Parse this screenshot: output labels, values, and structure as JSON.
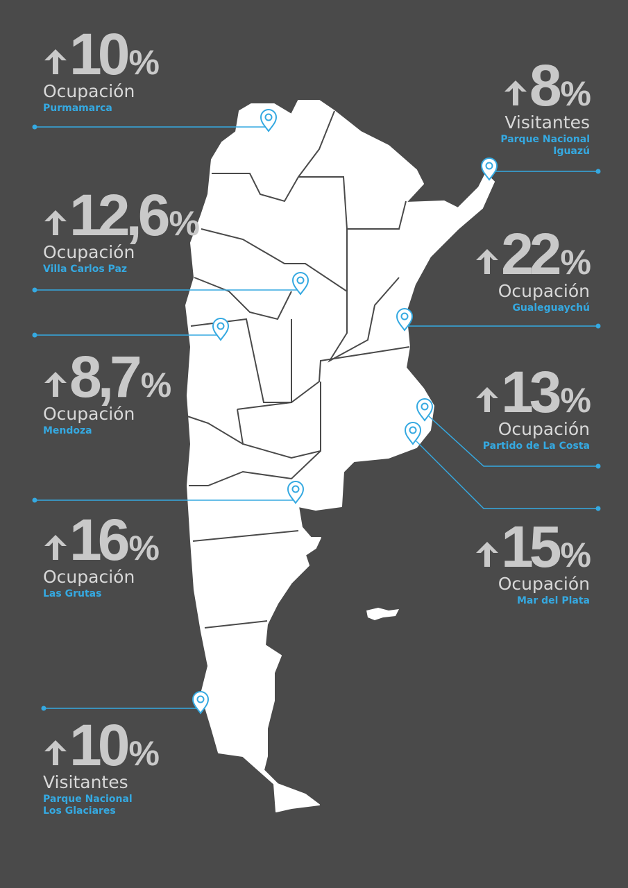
{
  "stats": [
    {
      "number": "10",
      "unit": "%",
      "metric": "Ocupación",
      "place": [
        "Purmamarca"
      ]
    },
    {
      "number": "8",
      "unit": "%",
      "metric": "Visitantes",
      "place": [
        "Parque Nacional",
        "Iguazú"
      ]
    },
    {
      "number": "12,6",
      "unit": "%",
      "metric": "Ocupación",
      "place": [
        "Villa Carlos Paz"
      ]
    },
    {
      "number": "22",
      "unit": "%",
      "metric": "Ocupación",
      "place": [
        "Gualeguaychú"
      ]
    },
    {
      "number": "8,7",
      "unit": "%",
      "metric": "Ocupación",
      "place": [
        "Mendoza"
      ]
    },
    {
      "number": "13",
      "unit": "%",
      "metric": "Ocupación",
      "place": [
        "Partido de La Costa"
      ]
    },
    {
      "number": "16",
      "unit": "%",
      "metric": "Ocupación",
      "place": [
        "Las Grutas"
      ]
    },
    {
      "number": "15",
      "unit": "%",
      "metric": "Ocupación",
      "place": [
        "Mar del Plata"
      ]
    },
    {
      "number": "10",
      "unit": "%",
      "metric": "Visitantes",
      "place": [
        "Parque Nacional",
        "Los Glaciares"
      ]
    }
  ]
}
